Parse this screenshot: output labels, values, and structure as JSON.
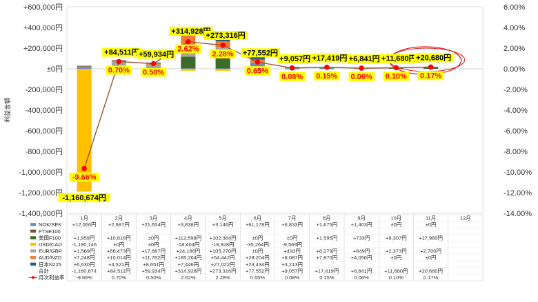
{
  "chart_data": {
    "type": "bar",
    "title": "",
    "xlabel": "",
    "ylabel": "利益金額",
    "categories": [
      "1月",
      "2月",
      "3月",
      "4月",
      "5月",
      "6月",
      "7月",
      "8月",
      "9月",
      "10月",
      "11月",
      "12月"
    ],
    "ylim": [
      -1400000,
      600000
    ],
    "y_ticks": [
      "+600,000円",
      "+400,000円",
      "+200,000円",
      "±0円",
      "-200,000円",
      "-400,000円",
      "-600,000円",
      "-800,000円",
      "-1,000,000円",
      "-1,200,000円",
      "-1,400,000円"
    ],
    "y2lim": [
      -14.0,
      6.0
    ],
    "y2_ticks": [
      "6.00%",
      "4.00%",
      "2.00%",
      "0.00%",
      "-2.00%",
      "-4.00%",
      "-6.00%",
      "-8.00%",
      "-10.00%",
      "-12.00%",
      "-14.00%"
    ],
    "series": [
      {
        "name": "NOK/SEK",
        "color": "#6c8ebf",
        "values": [
          12066,
          2687,
          21654,
          3838,
          3146,
          61178,
          6833,
          1675,
          1403,
          0,
          0,
          null
        ],
        "labels": [
          "+12,066円",
          "+2,687円",
          "+21,654円",
          "+3,838円",
          "+3,146円",
          "+61,178円",
          "+6,833円",
          "+1,675円",
          "+1,403円",
          "±0円",
          "±0円",
          ""
        ]
      },
      {
        "name": "FTSE100",
        "color": "#7a5230",
        "values": [
          null,
          null,
          null,
          null,
          null,
          null,
          null,
          null,
          null,
          null,
          null,
          null
        ],
        "labels": [
          "",
          "",
          "",
          "",
          "",
          "",
          "",
          "",
          "",
          "",
          "",
          ""
        ]
      },
      {
        "name": "美国F100",
        "color": "#3d6b2a",
        "values": [
          1959,
          10816,
          0,
          112598,
          102364,
          0,
          0,
          1595,
          733,
          9307,
          17980,
          null
        ],
        "labels": [
          "+1,959円",
          "+10,816円",
          "±0円",
          "+112,598円",
          "+102,364円",
          "±0円",
          "±0円",
          "+1,595円",
          "+733円",
          "+9,307円",
          "+17,980円",
          ""
        ]
      },
      {
        "name": "USD/CAD",
        "color": "#ffc000",
        "values": [
          -1190146,
          0,
          0,
          -18404,
          -18928,
          -35264,
          -9569,
          null,
          null,
          null,
          null,
          null
        ],
        "labels": [
          "-1,190,146",
          "±0円",
          "±0円",
          "-18,404円",
          "-18,928円",
          "-35,264円",
          "-9,569円",
          "",
          "",
          "",
          "",
          ""
        ]
      },
      {
        "name": "EUR/GBP",
        "color": "#a5a5a5",
        "values": [
          1569,
          56473,
          17867,
          24186,
          105270,
          0,
          493,
          6279,
          649,
          2373,
          2700,
          null
        ],
        "labels": [
          "+1,569円",
          "+56,473円",
          "+17,867円",
          "+24,186円",
          "+105,270円",
          "±0円",
          "+493円",
          "+6,279円",
          "+649円",
          "+2,373円",
          "+2,700円",
          ""
        ]
      },
      {
        "name": "AUD/NZD",
        "color": "#ed7d31",
        "values": [
          7248,
          10014,
          11762,
          185264,
          54442,
          28204,
          8087,
          7870,
          4056,
          0,
          0,
          null
        ],
        "labels": [
          "+7,248円",
          "+10,014円",
          "+11,762円",
          "+185,264円",
          "+54,442円",
          "+28,204円",
          "+8,087円",
          "+7,870円",
          "+4,056円",
          "±0円",
          "±0円",
          ""
        ]
      },
      {
        "name": "日本N225",
        "color": "#2e5c8a",
        "values": [
          6630,
          4521,
          8651,
          7446,
          27022,
          23434,
          3213,
          null,
          null,
          null,
          null,
          null
        ],
        "labels": [
          "+6,630円",
          "+4,521円",
          "+8,651円",
          "+7,446円",
          "+27,022円",
          "+23,434円",
          "+3,213円",
          "",
          "",
          "",
          "",
          ""
        ]
      }
    ],
    "totals": {
      "name": "合計",
      "values": [
        -1160674,
        84511,
        59934,
        314928,
        273316,
        77552,
        9057,
        17419,
        6841,
        11680,
        20680,
        null
      ],
      "labels": [
        "-1,160,674",
        "+84,511円",
        "+59,934円",
        "+314,928円",
        "+273,316円",
        "+77,552円",
        "+9,057円",
        "+17,419円",
        "+6,841円",
        "+11,680円",
        "+20,680円",
        ""
      ],
      "chart_labels": [
        "-1,160,674円",
        "+84,511円",
        "+59,934円",
        "+314,928円",
        "+273,316円",
        "+77,552円",
        "+9,057円",
        "+17,419円",
        "+6,841円",
        "+11,680円",
        "+20,680円",
        ""
      ]
    },
    "rate": {
      "name": "月次利益率",
      "color": "#c0392b",
      "values": [
        -9.66,
        0.7,
        0.5,
        2.62,
        2.28,
        0.65,
        0.08,
        0.15,
        0.06,
        0.1,
        0.17,
        null
      ],
      "labels": [
        "-9.66%",
        "0.70%",
        "0.50%",
        "2.62%",
        "2.28%",
        "0.65%",
        "0.08%",
        "0.15%",
        "0.06%",
        "0.10%",
        "0.17%",
        ""
      ]
    },
    "highlight": {
      "category": "11月",
      "shape": "red-ellipse"
    }
  }
}
